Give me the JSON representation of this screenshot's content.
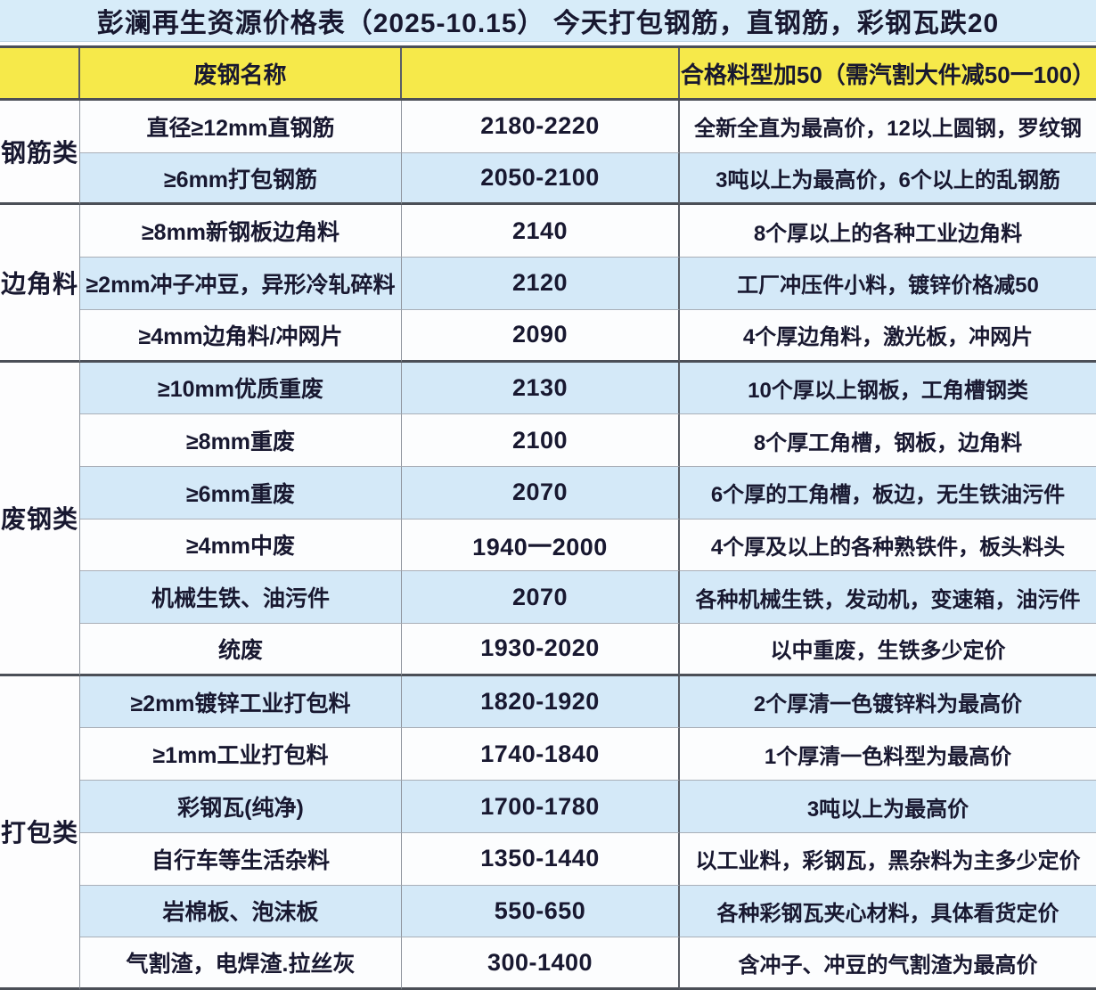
{
  "title": "彭澜再生资源价格表（2025-10.15） 今天打包钢筋，直钢筋，彩钢瓦跌20",
  "header": {
    "category_col": "",
    "name_col": "废钢名称",
    "price_col": "",
    "note_col": "合格料型加50（需汽割大件减50一100）"
  },
  "colors": {
    "title_bg": "#d7ecf9",
    "header_bg": "#f6e94a",
    "row_blue": "#d4e9f8",
    "row_white": "#fcfdfe",
    "text": "#181830",
    "thin_border": "#a9afb8",
    "thick_border": "#4b4f57"
  },
  "sections": [
    {
      "category": "钢筋类",
      "rows": [
        {
          "name": "直径≥12mm直钢筋",
          "price": "2180-2220",
          "note": "全新全直为最高价，12以上圆钢，罗纹钢",
          "shade": "white"
        },
        {
          "name": "≥6mm打包钢筋",
          "price": "2050-2100",
          "note": "3吨以上为最高价，6个以上的乱钢筋",
          "shade": "blue"
        }
      ]
    },
    {
      "category": "边角料",
      "rows": [
        {
          "name": "≥8mm新钢板边角料",
          "price": "2140",
          "note": "8个厚以上的各种工业边角料",
          "shade": "white"
        },
        {
          "name": "≥2mm冲子冲豆，异形冷轧碎料",
          "price": "2120",
          "note": "工厂冲压件小料，镀锌价格减50",
          "shade": "blue"
        },
        {
          "name": "≥4mm边角料/冲网片",
          "price": "2090",
          "note": "4个厚边角料，激光板，冲网片",
          "shade": "white"
        }
      ]
    },
    {
      "category": "废钢类",
      "rows": [
        {
          "name": "≥10mm优质重废",
          "price": "2130",
          "note": "10个厚以上钢板，工角槽钢类",
          "shade": "blue"
        },
        {
          "name": "≥8mm重废",
          "price": "2100",
          "note": "8个厚工角槽，钢板，边角料",
          "shade": "white"
        },
        {
          "name": "≥6mm重废",
          "price": "2070",
          "note": "6个厚的工角槽，板边，无生铁油污件",
          "shade": "blue"
        },
        {
          "name": "≥4mm中废",
          "price": "1940一2000",
          "note": "4个厚及以上的各种熟铁件，板头料头",
          "shade": "white"
        },
        {
          "name": "机械生铁、油污件",
          "price": "2070",
          "note": "各种机械生铁，发动机，变速箱，油污件",
          "shade": "blue"
        },
        {
          "name": "统废",
          "price": "1930-2020",
          "note": "以中重废，生铁多少定价",
          "shade": "white"
        }
      ]
    },
    {
      "category": "打包类",
      "rows": [
        {
          "name": "≥2mm镀锌工业打包料",
          "price": "1820-1920",
          "note": "2个厚清一色镀锌料为最高价",
          "shade": "blue"
        },
        {
          "name": "≥1mm工业打包料",
          "price": "1740-1840",
          "note": "1个厚清一色料型为最高价",
          "shade": "white"
        },
        {
          "name": "彩钢瓦(纯净)",
          "price": "1700-1780",
          "note": "3吨以上为最高价",
          "shade": "blue"
        },
        {
          "name": "自行车等生活杂料",
          "price": "1350-1440",
          "note": "以工业料，彩钢瓦，黑杂料为主多少定价",
          "shade": "white"
        },
        {
          "name": "岩棉板、泡沫板",
          "price": "550-650",
          "note": "各种彩钢瓦夹心材料，具体看货定价",
          "shade": "blue"
        },
        {
          "name": "气割渣，电焊渣.拉丝灰",
          "price": "300-1400",
          "note": "含冲子、冲豆的气割渣为最高价",
          "shade": "white"
        }
      ]
    }
  ]
}
